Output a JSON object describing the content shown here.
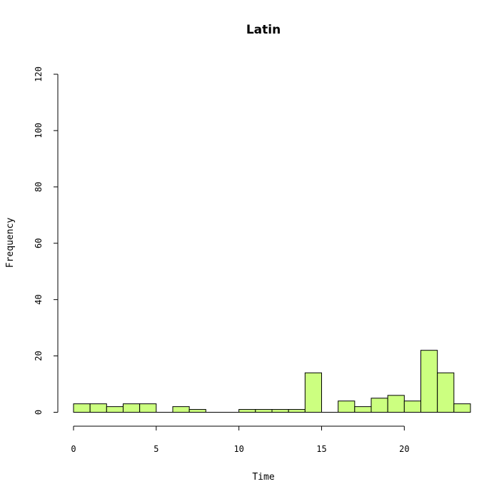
{
  "chart_data": {
    "type": "bar",
    "title": "Latin",
    "xlabel": "Time",
    "ylabel": "Frequency",
    "bar_color": "#ccff80",
    "bin_width": 1,
    "bins": [
      {
        "start": 0,
        "value": 3
      },
      {
        "start": 1,
        "value": 3
      },
      {
        "start": 2,
        "value": 2
      },
      {
        "start": 3,
        "value": 3
      },
      {
        "start": 4,
        "value": 3
      },
      {
        "start": 5,
        "value": 0
      },
      {
        "start": 6,
        "value": 2
      },
      {
        "start": 7,
        "value": 1
      },
      {
        "start": 8,
        "value": 0
      },
      {
        "start": 9,
        "value": 0
      },
      {
        "start": 10,
        "value": 1
      },
      {
        "start": 11,
        "value": 1
      },
      {
        "start": 12,
        "value": 1
      },
      {
        "start": 13,
        "value": 1
      },
      {
        "start": 14,
        "value": 14
      },
      {
        "start": 15,
        "value": 0
      },
      {
        "start": 16,
        "value": 4
      },
      {
        "start": 17,
        "value": 2
      },
      {
        "start": 18,
        "value": 5
      },
      {
        "start": 19,
        "value": 6
      },
      {
        "start": 20,
        "value": 4
      },
      {
        "start": 21,
        "value": 22
      },
      {
        "start": 22,
        "value": 14
      },
      {
        "start": 23,
        "value": 3
      }
    ],
    "xlim": [
      0,
      24
    ],
    "ylim": [
      0,
      120
    ],
    "x_ticks": [
      {
        "value": 0,
        "label": "0"
      },
      {
        "value": 5,
        "label": "5"
      },
      {
        "value": 10,
        "label": "10"
      },
      {
        "value": 15,
        "label": "15"
      },
      {
        "value": 20,
        "label": "20"
      }
    ],
    "y_ticks": [
      {
        "value": 0,
        "label": "0"
      },
      {
        "value": 20,
        "label": "20"
      },
      {
        "value": 40,
        "label": "40"
      },
      {
        "value": 60,
        "label": "60"
      },
      {
        "value": 80,
        "label": "80"
      },
      {
        "value": 100,
        "label": "100"
      },
      {
        "value": 120,
        "label": "120"
      }
    ],
    "grid": false,
    "legend": "none"
  }
}
